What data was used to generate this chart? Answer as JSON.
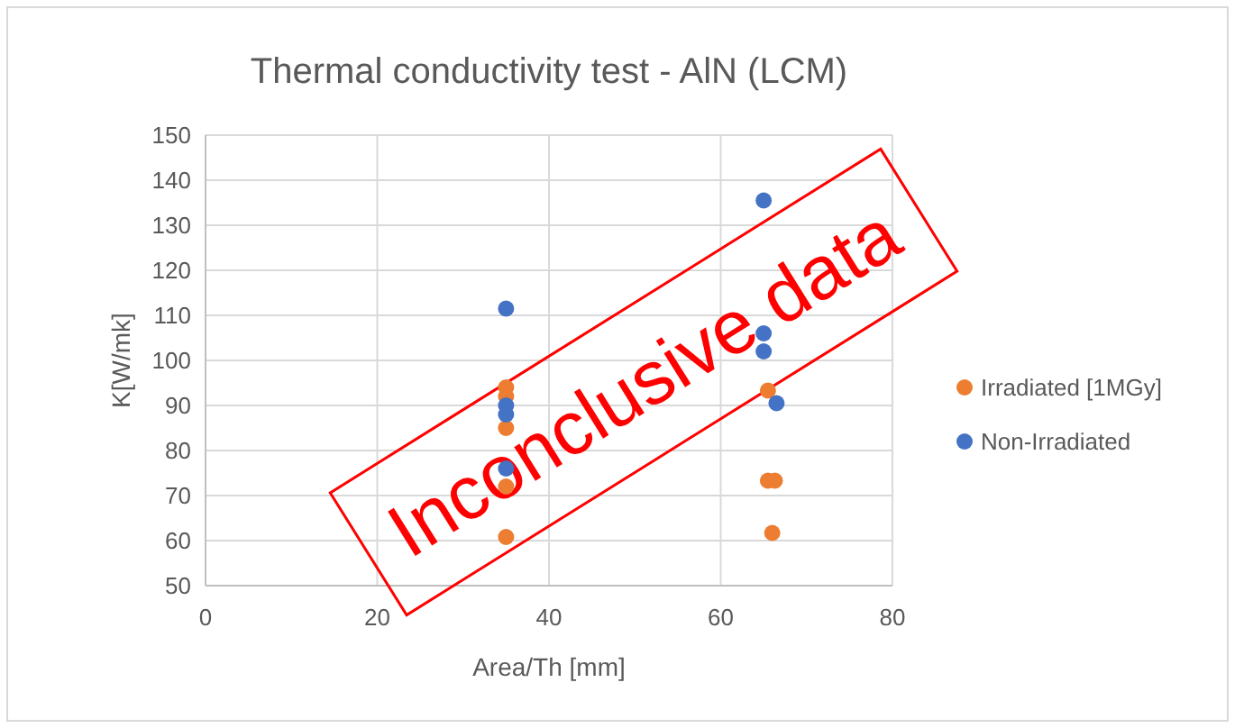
{
  "chart_data": {
    "type": "scatter",
    "title": "Thermal conductivity test - AlN  (LCM)",
    "xlabel": "Area/Th [mm]",
    "ylabel": "K[W/mk]",
    "xlim": [
      0,
      80
    ],
    "xticks": [
      0,
      20,
      40,
      60,
      80
    ],
    "ylim": [
      50,
      150
    ],
    "yticks": [
      50,
      60,
      70,
      80,
      90,
      100,
      110,
      120,
      130,
      140,
      150
    ],
    "grid": true,
    "legend": "right",
    "marker": "circle",
    "series": [
      {
        "name": "Irradiated [1MGy]",
        "color": "#ed7d31",
        "x": [
          35,
          35,
          35,
          35,
          35,
          65.5,
          65.5,
          66.3,
          66
        ],
        "values": [
          94,
          85,
          72,
          60.8,
          92,
          93.3,
          73.3,
          73.3,
          61.7
        ]
      },
      {
        "name": "Non-Irradiated",
        "color": "#4472c4",
        "x": [
          35,
          35,
          35,
          35,
          65,
          65,
          65,
          66.5
        ],
        "values": [
          111.5,
          90,
          88,
          76,
          135.5,
          106,
          102,
          90.5
        ]
      }
    ],
    "annotations": [
      "Inconclusive data"
    ]
  }
}
